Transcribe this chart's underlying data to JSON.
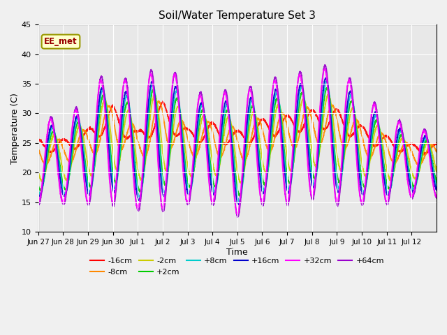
{
  "title": "Soil/Water Temperature Set 3",
  "xlabel": "Time",
  "ylabel": "Temperature (C)",
  "ylim": [
    10,
    45
  ],
  "xtick_labels": [
    "Jun 27",
    "Jun 28",
    "Jun 29",
    "Jun 30",
    "Jul 1",
    "Jul 2",
    "Jul 3",
    "Jul 4",
    "Jul 5",
    "Jul 6",
    "Jul 7",
    "Jul 8",
    "Jul 9",
    "Jul 10",
    "Jul 11",
    "Jul 12"
  ],
  "series_colors": {
    "-16cm": "#ff0000",
    "-8cm": "#ff8800",
    "-2cm": "#cccc00",
    "+2cm": "#00cc00",
    "+8cm": "#00cccc",
    "+16cm": "#0000cc",
    "+32cm": "#ff00ff",
    "+64cm": "#9900cc"
  },
  "annotation_text": "EE_met",
  "annotation_fg": "#990000",
  "annotation_bg": "#ffffcc",
  "annotation_border": "#999900",
  "fig_bg": "#f0f0f0",
  "ax_bg": "#e8e8e8",
  "grid_color": "#ffffff",
  "yticks": [
    10,
    15,
    20,
    25,
    30,
    35,
    40,
    45
  ],
  "legend_order": [
    "-16cm",
    "-8cm",
    "-2cm",
    "+2cm",
    "+8cm",
    "+16cm",
    "+32cm",
    "+64cm"
  ]
}
